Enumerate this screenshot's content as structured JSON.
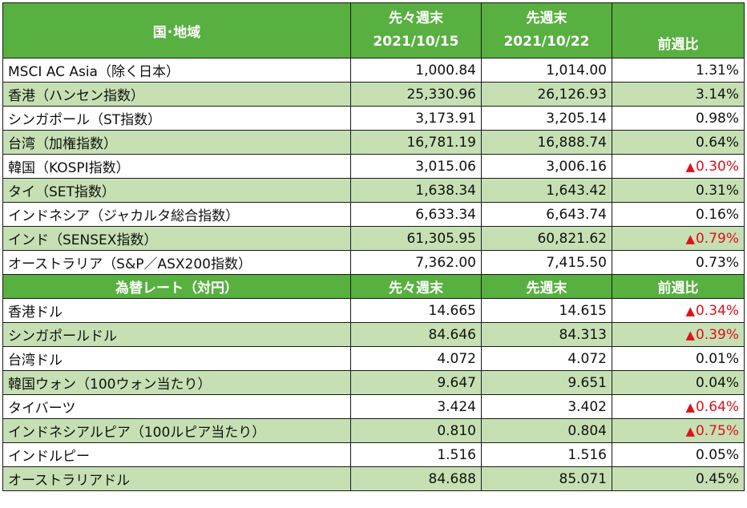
{
  "section1": {
    "header": {
      "name": "国･地域",
      "prev_label": "先々週末",
      "prev_date": "2021/10/15",
      "curr_label": "先週末",
      "curr_date": "2021/10/22",
      "change": "前週比"
    },
    "rows": [
      {
        "name": "MSCI AC Asia（除く日本）",
        "prev": "1,000.84",
        "curr": "1,014.00",
        "change": "1.31%",
        "neg": false
      },
      {
        "name": "香港（ハンセン指数）",
        "prev": "25,330.96",
        "curr": "26,126.93",
        "change": "3.14%",
        "neg": false
      },
      {
        "name": "シンガポール（ST指数）",
        "prev": "3,173.91",
        "curr": "3,205.14",
        "change": "0.98%",
        "neg": false
      },
      {
        "name": "台湾（加権指数）",
        "prev": "16,781.19",
        "curr": "16,888.74",
        "change": "0.64%",
        "neg": false
      },
      {
        "name": "韓国（KOSPI指数）",
        "prev": "3,015.06",
        "curr": "3,006.16",
        "change": "0.30%",
        "neg": true
      },
      {
        "name": "タイ（SET指数）",
        "prev": "1,638.34",
        "curr": "1,643.42",
        "change": "0.31%",
        "neg": false
      },
      {
        "name": "インドネシア（ジャカルタ総合指数）",
        "prev": "6,633.34",
        "curr": "6,643.74",
        "change": "0.16%",
        "neg": false
      },
      {
        "name": "インド（SENSEX指数）",
        "prev": "61,305.95",
        "curr": "60,821.62",
        "change": "0.79%",
        "neg": true
      },
      {
        "name": "オーストラリア（S&P／ASX200指数）",
        "prev": "7,362.00",
        "curr": "7,415.50",
        "change": "0.73%",
        "neg": false
      }
    ]
  },
  "section2": {
    "header": {
      "name": "為替レート（対円）",
      "prev_label": "先々週末",
      "curr_label": "先週末",
      "change": "前週比"
    },
    "rows": [
      {
        "name": "香港ドル",
        "prev": "14.665",
        "curr": "14.615",
        "change": "0.34%",
        "neg": true
      },
      {
        "name": "シンガポールドル",
        "prev": "84.646",
        "curr": "84.313",
        "change": "0.39%",
        "neg": true
      },
      {
        "name": "台湾ドル",
        "prev": "4.072",
        "curr": "4.072",
        "change": "0.01%",
        "neg": false
      },
      {
        "name": "韓国ウォン（100ウォン当たり）",
        "prev": "9.647",
        "curr": "9.651",
        "change": "0.04%",
        "neg": false
      },
      {
        "name": "タイバーツ",
        "prev": "3.424",
        "curr": "3.402",
        "change": "0.64%",
        "neg": true
      },
      {
        "name": "インドネシアルピア（100ルピア当たり）",
        "prev": "0.810",
        "curr": "0.804",
        "change": "0.75%",
        "neg": true
      },
      {
        "name": "インドルピー",
        "prev": "1.516",
        "curr": "1.516",
        "change": "0.05%",
        "neg": false
      },
      {
        "name": "オーストラリアドル",
        "prev": "84.688",
        "curr": "85.071",
        "change": "0.45%",
        "neg": false
      }
    ]
  },
  "colors": {
    "header_bg": "#58b040",
    "alt_row_bg": "#c6e0b4",
    "negative": "#e0101a"
  },
  "icons": {
    "decline": "up-triangle-icon"
  },
  "decline_marker": "▲"
}
